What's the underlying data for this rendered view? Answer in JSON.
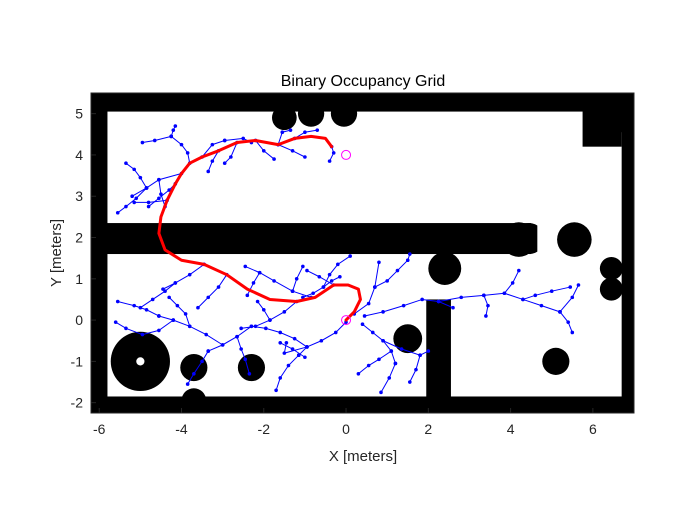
{
  "chart_data": {
    "type": "scatter",
    "title": "Binary Occupancy Grid",
    "xlabel": "X [meters]",
    "ylabel": "Y [meters]",
    "xlim": [
      -6.2,
      7.0
    ],
    "ylim": [
      -2.25,
      5.5
    ],
    "xticks": [
      -6,
      -4,
      -2,
      0,
      2,
      4,
      6
    ],
    "yticks": [
      -2,
      -1,
      0,
      1,
      2,
      3,
      4,
      5
    ],
    "xtick_labels": [
      "-6",
      "-4",
      "-2",
      "0",
      "2",
      "4",
      "6"
    ],
    "ytick_labels": [
      "-2",
      "-1",
      "0",
      "1",
      "2",
      "3",
      "4",
      "5"
    ],
    "grid": false,
    "colors": {
      "obstacle": "#000000",
      "free": "#ffffff",
      "tree": "#0000ff",
      "path": "#ff0000",
      "markers": "#ff00ff"
    },
    "obstacles": {
      "rects": [
        [
          -6.2,
          5.05,
          7.0,
          5.5
        ],
        [
          -6.2,
          -2.25,
          7.0,
          -1.85
        ],
        [
          -6.2,
          -2.25,
          -5.8,
          5.5
        ],
        [
          6.7,
          -2.25,
          7.0,
          5.5
        ],
        [
          -6.2,
          1.6,
          4.5,
          2.35
        ],
        [
          1.95,
          -2.25,
          2.55,
          0.5
        ],
        [
          5.75,
          4.2,
          6.7,
          5.5
        ],
        [
          6.45,
          4.55,
          6.95,
          5.45
        ]
      ],
      "circles": [
        [
          -5.0,
          -1.0,
          0.72
        ],
        [
          -3.7,
          -1.15,
          0.33
        ],
        [
          -2.3,
          -1.15,
          0.33
        ],
        [
          -3.7,
          -1.95,
          0.3
        ],
        [
          1.5,
          -0.45,
          0.35
        ],
        [
          2.4,
          1.25,
          0.4
        ],
        [
          5.1,
          -1.0,
          0.33
        ],
        [
          6.45,
          1.25,
          0.28
        ],
        [
          6.45,
          0.75,
          0.28
        ],
        [
          -0.85,
          5.0,
          0.32
        ],
        [
          -0.05,
          5.0,
          0.32
        ],
        [
          4.2,
          1.95,
          0.42
        ],
        [
          5.55,
          1.95,
          0.42
        ],
        [
          -1.5,
          4.9,
          0.3
        ]
      ],
      "free_circles": [
        [
          -5.0,
          -1.0,
          0.1
        ]
      ]
    },
    "start": [
      0.0,
      0.0
    ],
    "goal": [
      0.0,
      4.0
    ],
    "path": {
      "x": [
        0.0,
        0.2,
        0.35,
        0.3,
        0.05,
        -0.3,
        -0.75,
        -1.2,
        -1.85,
        -2.4,
        -2.9,
        -3.45,
        -4.0,
        -4.4,
        -4.55,
        -4.5,
        -4.35,
        -4.15,
        -4.0,
        -3.8,
        -3.5,
        -3.1,
        -2.65,
        -2.2,
        -1.65,
        -1.25,
        -0.85,
        -0.5,
        -0.35
      ],
      "y": [
        0.0,
        0.2,
        0.5,
        0.75,
        0.85,
        0.85,
        0.55,
        0.45,
        0.5,
        0.75,
        1.1,
        1.35,
        1.45,
        1.7,
        2.1,
        2.5,
        2.9,
        3.3,
        3.55,
        3.8,
        3.95,
        4.1,
        4.3,
        4.35,
        4.25,
        4.4,
        4.45,
        4.4,
        4.2
      ]
    },
    "tree": {
      "branches": [
        {
          "x": [
            0.2,
            0.55,
            0.7,
            0.8
          ],
          "y": [
            0.15,
            0.4,
            0.8,
            1.4
          ]
        },
        {
          "x": [
            0.7,
            1.0,
            1.25,
            1.5,
            1.55
          ],
          "y": [
            0.8,
            0.95,
            1.2,
            1.45,
            1.6
          ]
        },
        {
          "x": [
            0.45,
            0.9,
            1.4,
            1.85,
            2.25,
            2.6
          ],
          "y": [
            0.1,
            0.2,
            0.35,
            0.5,
            0.45,
            0.3
          ]
        },
        {
          "x": [
            2.25,
            2.8,
            3.35,
            3.85,
            4.3,
            4.75,
            5.2
          ],
          "y": [
            0.45,
            0.55,
            0.6,
            0.65,
            0.5,
            0.35,
            0.2
          ]
        },
        {
          "x": [
            4.3,
            4.6,
            5.0,
            5.45
          ],
          "y": [
            0.5,
            0.6,
            0.7,
            0.8
          ]
        },
        {
          "x": [
            5.2,
            5.5,
            5.65
          ],
          "y": [
            0.2,
            0.55,
            0.85
          ]
        },
        {
          "x": [
            5.2,
            5.4,
            5.5
          ],
          "y": [
            0.2,
            -0.05,
            -0.3
          ]
        },
        {
          "x": [
            3.85,
            4.05,
            4.2
          ],
          "y": [
            0.65,
            0.9,
            1.2
          ]
        },
        {
          "x": [
            3.35,
            3.45,
            3.4
          ],
          "y": [
            0.6,
            0.35,
            0.1
          ]
        },
        {
          "x": [
            0.4,
            0.65,
            0.9,
            1.1,
            1.2
          ],
          "y": [
            -0.1,
            -0.3,
            -0.5,
            -0.75,
            -1.05
          ]
        },
        {
          "x": [
            0.9,
            1.35,
            1.8,
            2.0
          ],
          "y": [
            -0.5,
            -0.7,
            -0.85,
            -0.75
          ]
        },
        {
          "x": [
            1.8,
            1.7,
            1.55
          ],
          "y": [
            -0.85,
            -1.2,
            -1.5
          ]
        },
        {
          "x": [
            1.1,
            0.8,
            0.55,
            0.3
          ],
          "y": [
            -0.75,
            -0.95,
            -1.1,
            -1.3
          ]
        },
        {
          "x": [
            1.2,
            1.05,
            0.85
          ],
          "y": [
            -1.05,
            -1.4,
            -1.75
          ]
        },
        {
          "x": [
            0.0,
            -0.25,
            -0.6,
            -0.95,
            -1.15
          ],
          "y": [
            -0.05,
            -0.3,
            -0.5,
            -0.65,
            -0.85
          ]
        },
        {
          "x": [
            -0.95,
            -1.25,
            -1.6,
            -1.95,
            -2.3
          ],
          "y": [
            -0.65,
            -0.45,
            -0.3,
            -0.2,
            -0.15
          ]
        },
        {
          "x": [
            -2.3,
            -2.65,
            -3.0,
            -3.35
          ],
          "y": [
            -0.15,
            -0.4,
            -0.6,
            -0.75
          ]
        },
        {
          "x": [
            -3.0,
            -3.4,
            -3.8,
            -4.2,
            -4.55
          ],
          "y": [
            -0.6,
            -0.35,
            -0.15,
            0.0,
            0.1
          ]
        },
        {
          "x": [
            -4.2,
            -4.55,
            -4.95,
            -5.35,
            -5.6
          ],
          "y": [
            0.0,
            -0.25,
            -0.35,
            -0.2,
            -0.05
          ]
        },
        {
          "x": [
            -4.55,
            -4.85,
            -5.15,
            -5.55
          ],
          "y": [
            0.1,
            0.25,
            0.35,
            0.45
          ]
        },
        {
          "x": [
            -3.8,
            -3.9,
            -4.1,
            -4.3
          ],
          "y": [
            -0.15,
            0.15,
            0.35,
            0.55
          ]
        },
        {
          "x": [
            -3.35,
            -3.5,
            -3.7,
            -3.85
          ],
          "y": [
            -0.75,
            -1.0,
            -1.3,
            -1.55
          ]
        },
        {
          "x": [
            -1.15,
            -1.4,
            -1.6,
            -1.7
          ],
          "y": [
            -0.85,
            -1.1,
            -1.4,
            -1.7
          ]
        },
        {
          "x": [
            -1.6,
            -1.3,
            -1.0
          ],
          "y": [
            -0.55,
            -0.7,
            -0.9
          ]
        },
        {
          "x": [
            -2.65,
            -2.55,
            -2.45,
            -2.35
          ],
          "y": [
            -0.4,
            -0.7,
            -0.95,
            -1.3
          ]
        },
        {
          "x": [
            -1.05,
            -0.8,
            -0.55,
            -0.35,
            -0.15
          ],
          "y": [
            0.55,
            0.65,
            0.8,
            0.95,
            1.05
          ]
        },
        {
          "x": [
            -0.55,
            -0.4,
            -0.2,
            0.1
          ],
          "y": [
            0.8,
            1.1,
            1.35,
            1.55
          ]
        },
        {
          "x": [
            -0.85,
            -1.3,
            -1.75,
            -2.1,
            -2.45
          ],
          "y": [
            0.55,
            0.7,
            0.95,
            1.15,
            1.3
          ]
        },
        {
          "x": [
            -1.3,
            -1.2,
            -1.05
          ],
          "y": [
            0.7,
            1.0,
            1.3
          ]
        },
        {
          "x": [
            -2.1,
            -2.25,
            -2.4
          ],
          "y": [
            1.15,
            0.9,
            0.6
          ]
        },
        {
          "x": [
            -1.2,
            -1.5,
            -1.85,
            -2.2,
            -2.55
          ],
          "y": [
            0.45,
            0.2,
            0.0,
            -0.15,
            -0.2
          ]
        },
        {
          "x": [
            -1.85,
            -2.0,
            -2.15
          ],
          "y": [
            0.0,
            0.25,
            0.45
          ]
        },
        {
          "x": [
            -2.9,
            -3.1,
            -3.35,
            -3.6
          ],
          "y": [
            1.1,
            0.8,
            0.55,
            0.3
          ]
        },
        {
          "x": [
            -3.45,
            -3.8,
            -4.15,
            -4.45
          ],
          "y": [
            1.35,
            1.1,
            0.9,
            0.75
          ]
        },
        {
          "x": [
            -4.15,
            -4.4,
            -4.7,
            -5.0
          ],
          "y": [
            0.9,
            0.7,
            0.5,
            0.3
          ]
        },
        {
          "x": [
            -0.3,
            -0.65,
            -0.95
          ],
          "y": [
            0.85,
            1.05,
            1.2
          ]
        },
        {
          "x": [
            -0.95,
            -1.5,
            -1.45
          ],
          "y": [
            -0.65,
            -0.8,
            -0.55
          ]
        },
        {
          "x": [
            -4.0,
            -4.55,
            -4.85,
            -5.2
          ],
          "y": [
            3.55,
            3.4,
            3.2,
            3.0
          ]
        },
        {
          "x": [
            -4.55,
            -4.5,
            -4.4
          ],
          "y": [
            3.4,
            3.05,
            2.75
          ]
        },
        {
          "x": [
            -4.85,
            -5.0,
            -5.15,
            -5.35
          ],
          "y": [
            3.2,
            3.45,
            3.65,
            3.8
          ]
        },
        {
          "x": [
            -4.85,
            -5.1,
            -5.35,
            -5.55
          ],
          "y": [
            3.2,
            2.95,
            2.75,
            2.6
          ]
        },
        {
          "x": [
            -4.35,
            -4.8,
            -5.15
          ],
          "y": [
            2.9,
            2.85,
            2.85
          ]
        },
        {
          "x": [
            -4.15,
            -4.3,
            -4.55,
            -4.8
          ],
          "y": [
            3.3,
            3.15,
            2.95,
            2.75
          ]
        },
        {
          "x": [
            -3.8,
            -3.85,
            -4.0,
            -4.25
          ],
          "y": [
            3.8,
            4.05,
            4.25,
            4.45
          ]
        },
        {
          "x": [
            -4.25,
            -4.65,
            -4.95
          ],
          "y": [
            4.45,
            4.35,
            4.3
          ]
        },
        {
          "x": [
            -4.25,
            -4.2,
            -4.15
          ],
          "y": [
            4.45,
            4.6,
            4.7
          ]
        },
        {
          "x": [
            -3.5,
            -3.25,
            -2.95
          ],
          "y": [
            3.95,
            4.25,
            4.35
          ]
        },
        {
          "x": [
            -2.95,
            -2.5,
            -2.3
          ],
          "y": [
            4.35,
            4.4,
            4.3
          ]
        },
        {
          "x": [
            -3.1,
            -3.25,
            -3.35
          ],
          "y": [
            4.1,
            3.85,
            3.6
          ]
        },
        {
          "x": [
            -2.65,
            -2.8,
            -2.95
          ],
          "y": [
            4.3,
            3.95,
            3.8
          ]
        },
        {
          "x": [
            -2.2,
            -2.0,
            -1.75
          ],
          "y": [
            4.35,
            4.1,
            3.9
          ]
        },
        {
          "x": [
            -1.65,
            -1.3,
            -1.0
          ],
          "y": [
            4.25,
            4.1,
            3.95
          ]
        },
        {
          "x": [
            -1.25,
            -1.0,
            -0.7
          ],
          "y": [
            4.4,
            4.55,
            4.6
          ]
        },
        {
          "x": [
            -1.65,
            -1.55,
            -1.35
          ],
          "y": [
            4.25,
            4.55,
            4.6
          ]
        },
        {
          "x": [
            -0.35,
            -0.3,
            -0.4
          ],
          "y": [
            4.2,
            4.05,
            3.85
          ]
        }
      ]
    }
  }
}
